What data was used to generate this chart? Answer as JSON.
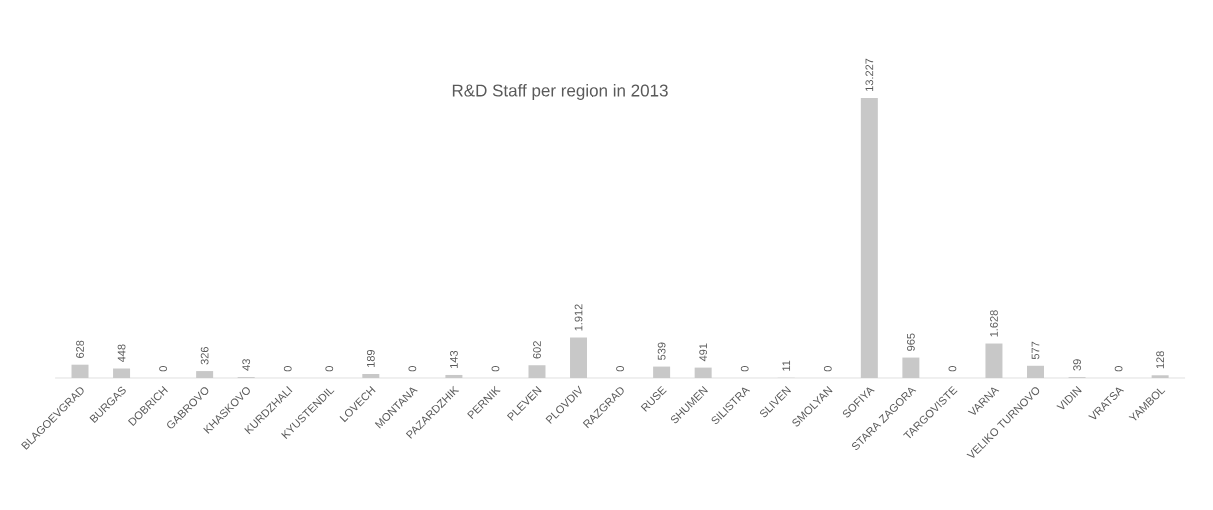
{
  "chart_data": {
    "type": "bar",
    "title": "R&D Staff per region in 2013",
    "categories": [
      "BLAGOEVGRAD",
      "BURGAS",
      "DOBRICH",
      "GABROVO",
      "KHASKOVO",
      "KURDZHALI",
      "KYUSTENDIL",
      "LOVECH",
      "MONTANA",
      "PAZARDZHIK",
      "PERNIK",
      "PLEVEN",
      "PLOVDIV",
      "RAZGRAD",
      "RUSE",
      "SHUMEN",
      "SILISTRA",
      "SLIVEN",
      "SMOLYAN",
      "SOFIYA",
      "STARA ZAGORA",
      "TARGOVISTE",
      "VARNA",
      "VELIKO TURNOVO",
      "VIDIN",
      "VRATSA",
      "YAMBOL"
    ],
    "values": [
      628,
      448,
      0,
      326,
      43,
      0,
      0,
      189,
      0,
      143,
      0,
      602,
      1912,
      0,
      539,
      491,
      0,
      11,
      0,
      13227,
      965,
      0,
      1628,
      577,
      39,
      0,
      128
    ],
    "value_labels": [
      "628",
      "448",
      "0",
      "326",
      "43",
      "0",
      "0",
      "189",
      "0",
      "143",
      "0",
      "602",
      "1.912",
      "0",
      "539",
      "491",
      "0",
      "11",
      "0",
      "13.227",
      "965",
      "0",
      "1.628",
      "577",
      "39",
      "0",
      "128"
    ],
    "color": "#c8c8c8"
  }
}
